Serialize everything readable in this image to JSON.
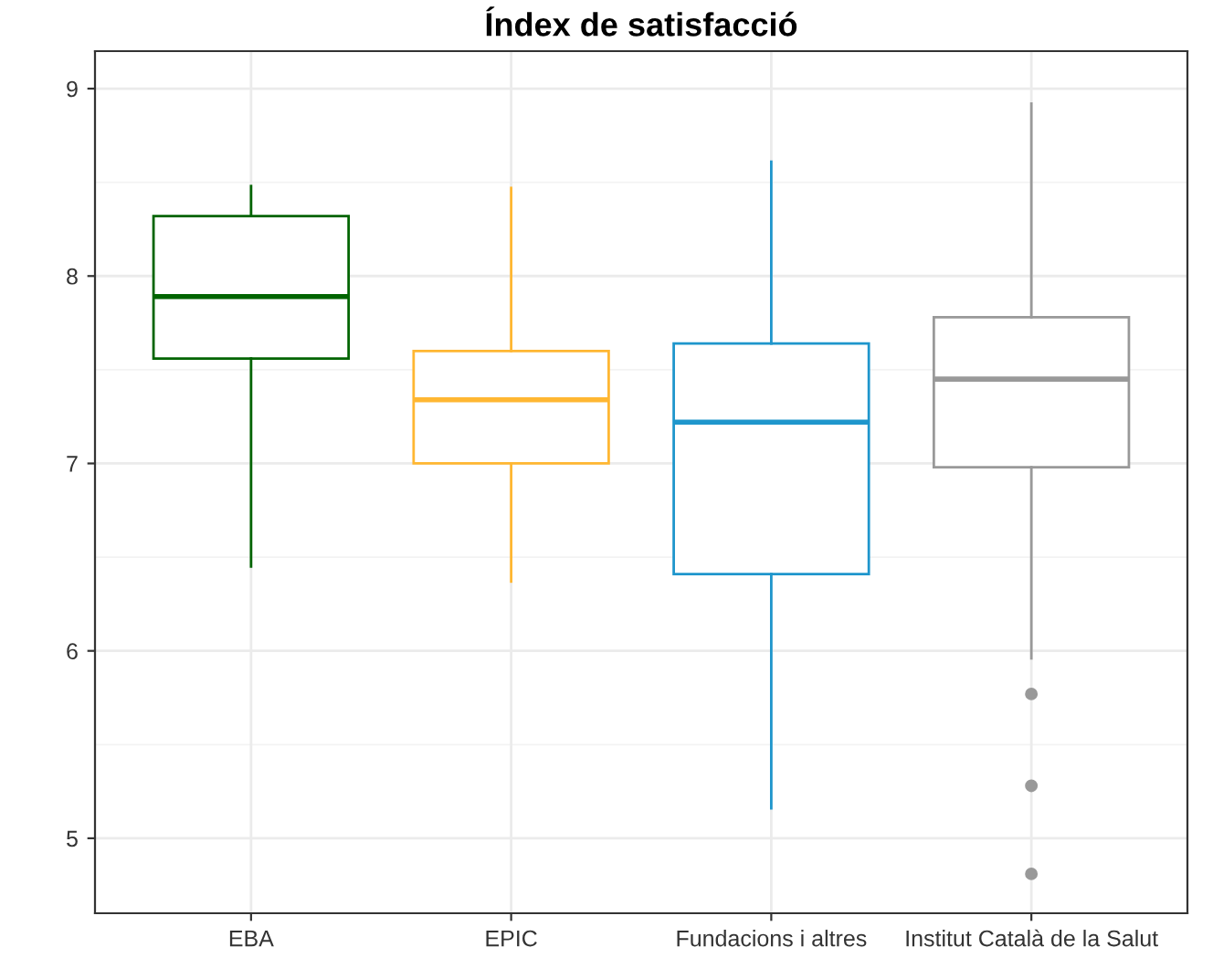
{
  "chart_data": {
    "type": "box",
    "title": "Índex de satisfacció",
    "categories": [
      "EBA",
      "EPIC",
      "Fundacions i altres",
      "Institut Català de la Salut"
    ],
    "colors": [
      "#006400",
      "#ffb732",
      "#1f96cc",
      "#999999"
    ],
    "boxes": [
      {
        "low": 6.45,
        "q1": 7.56,
        "median": 7.89,
        "q3": 8.32,
        "high": 8.48
      },
      {
        "low": 6.37,
        "q1": 7.0,
        "median": 7.34,
        "q3": 7.6,
        "high": 8.47
      },
      {
        "low": 5.16,
        "q1": 6.41,
        "median": 7.22,
        "q3": 7.64,
        "high": 8.61
      },
      {
        "low": 5.96,
        "q1": 6.98,
        "median": 7.45,
        "q3": 7.78,
        "high": 8.92,
        "outliers": [
          5.77,
          5.28,
          4.81
        ]
      }
    ],
    "ylim": [
      4.6,
      9.2
    ],
    "yticks": [
      5,
      6,
      7,
      8,
      9
    ],
    "grid": true
  }
}
